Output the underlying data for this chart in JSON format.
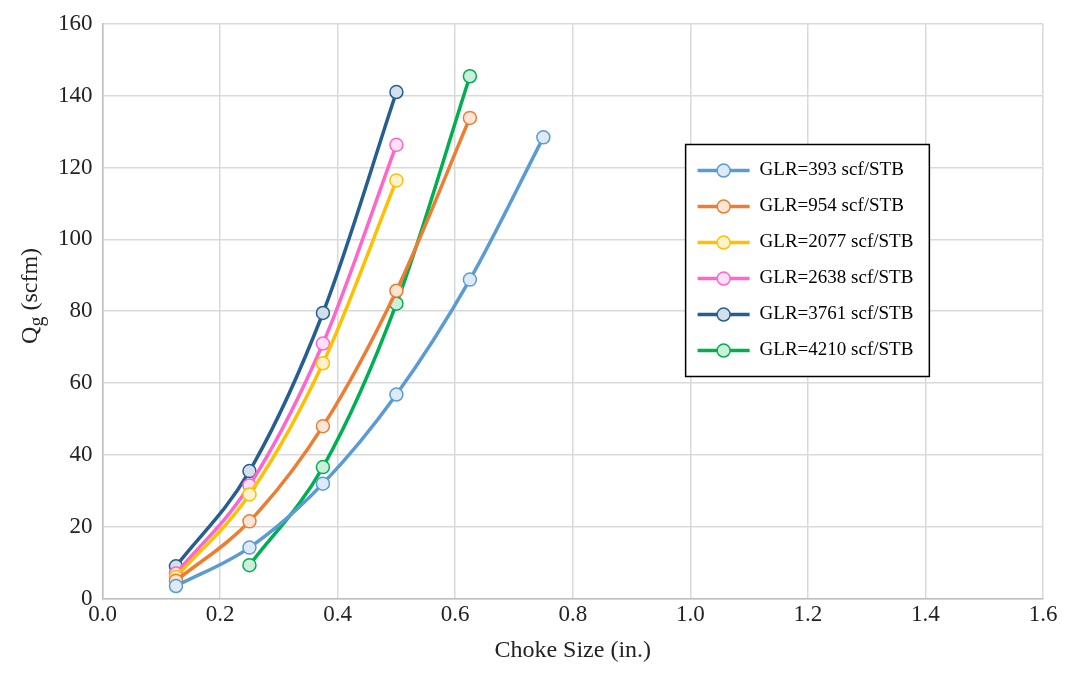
{
  "chart_data": {
    "type": "line",
    "xlabel": "Choke Size (in.)",
    "ylabel": "Q$_{g}$ (scfm)",
    "xlim": [
      0,
      1.6
    ],
    "xticks": [
      {
        "value": 0,
        "label": "0.0"
      },
      {
        "value": 0.2,
        "label": "0.2"
      },
      {
        "value": 0.4,
        "label": "0.4"
      },
      {
        "value": 0.6,
        "label": "0.6"
      },
      {
        "value": 0.8,
        "label": "0.8"
      },
      {
        "value": 1,
        "label": "1.0"
      },
      {
        "value": 1.2,
        "label": "1.2"
      },
      {
        "value": 1.4,
        "label": "1.4"
      },
      {
        "value": 1.6,
        "label": "1.6"
      }
    ],
    "ylim": [
      0,
      160
    ],
    "yticks": [
      0,
      20,
      40,
      60,
      80,
      100,
      120,
      140,
      160
    ],
    "grid": true,
    "legend": "right",
    "marker": "circle",
    "line_style": "solid",
    "series": [
      {
        "name": "GLR=393 scf/STB",
        "color": "#5b9bd5",
        "x": [
          0.125,
          0.25,
          0.375,
          0.5,
          0.625,
          0.75
        ],
        "values": [
          3.5,
          14.2,
          32,
          56.8,
          88.8,
          128.4
        ]
      },
      {
        "name": "GLR=954 scf/STB",
        "color": "#ed7d31",
        "x": [
          0.125,
          0.25,
          0.375,
          0.5,
          0.625
        ],
        "values": [
          5,
          21.5,
          48,
          85.7,
          133.8
        ]
      },
      {
        "name": "GLR=2077 scf/STB",
        "color": "#ffc000",
        "x": [
          0.125,
          0.25,
          0.375,
          0.5
        ],
        "values": [
          6,
          29,
          65.5,
          116.4
        ]
      },
      {
        "name": "GLR=2638 scf/STB",
        "color": "#ff66cc",
        "x": [
          0.125,
          0.25,
          0.375,
          0.5
        ],
        "values": [
          7,
          31.5,
          71,
          126.3
        ]
      },
      {
        "name": "GLR=3761 scf/STB",
        "color": "#255e91",
        "x": [
          0.125,
          0.25,
          0.375,
          0.5
        ],
        "values": [
          9,
          35.5,
          79.5,
          141
        ]
      },
      {
        "name": "GLR=4210 scf/STB",
        "color": "#00b050",
        "x": [
          0.25,
          0.375,
          0.5,
          0.625
        ],
        "values": [
          9.3,
          36.6,
          82.1,
          145.4
        ]
      }
    ]
  }
}
